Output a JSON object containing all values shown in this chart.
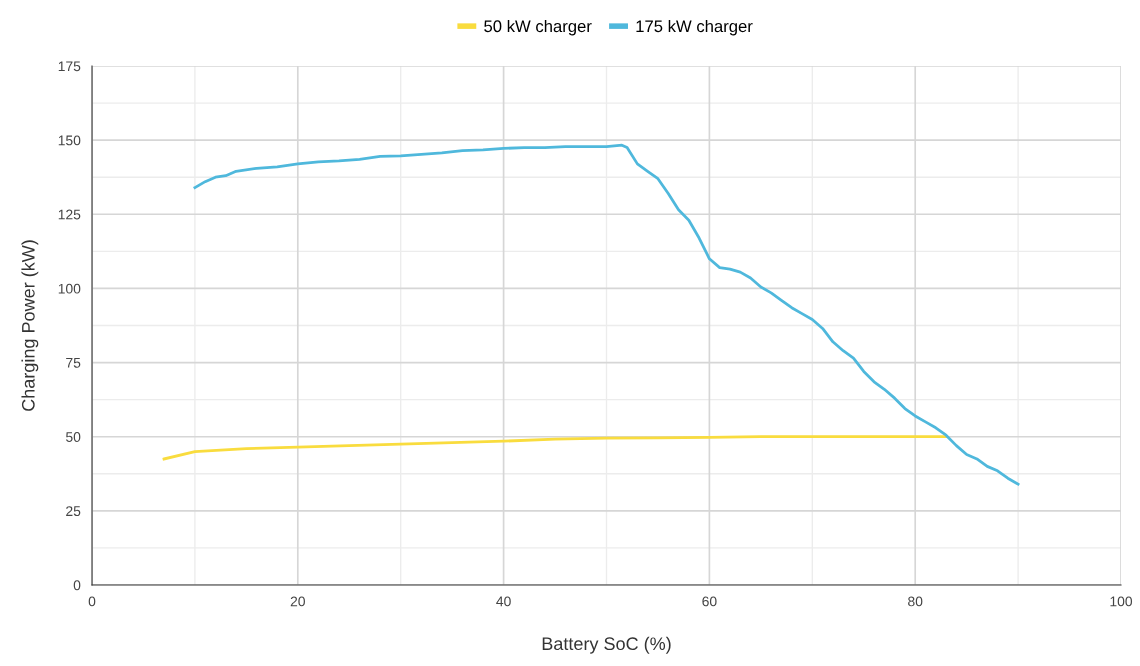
{
  "chart_data": {
    "type": "line",
    "xlabel": "Battery SoC (%)",
    "ylabel": "Charging Power (kW)",
    "xlim": [
      0,
      100
    ],
    "xticks": [
      0,
      20,
      40,
      60,
      80,
      100
    ],
    "ylim": [
      0,
      175
    ],
    "yticks": [
      0,
      25,
      50,
      75,
      100,
      125,
      150,
      175
    ],
    "grid": true,
    "legend": "top",
    "marker": "none",
    "line_style": "solid",
    "series": [
      {
        "name": "50 kW charger",
        "color": "#f9dc3e",
        "x": [
          7,
          10,
          15,
          20,
          25,
          30,
          35,
          40,
          45,
          50,
          55,
          60,
          65,
          70,
          75,
          80,
          83
        ],
        "values": [
          42.5,
          45,
          46,
          46.5,
          47,
          47.5,
          48,
          48.5,
          49.2,
          49.5,
          49.6,
          49.8,
          50,
          50,
          50,
          50,
          50
        ]
      },
      {
        "name": "175 kW charger",
        "color": "#4fb8dc",
        "x": [
          10,
          11,
          12,
          13,
          14,
          16,
          18,
          20,
          22,
          24,
          26,
          28,
          30,
          32,
          34,
          36,
          38,
          40,
          42,
          44,
          46,
          48,
          50,
          51.5,
          52,
          53,
          54,
          55,
          56,
          57,
          58,
          59,
          60,
          61,
          62,
          63,
          64,
          65,
          66,
          67,
          68,
          69,
          70,
          71,
          72,
          73,
          74,
          75,
          76,
          77,
          78,
          79,
          80,
          81,
          82,
          83,
          84,
          85,
          86,
          87,
          88,
          89,
          90
        ],
        "values": [
          134,
          136,
          137.5,
          138,
          139.5,
          140.5,
          141,
          142,
          142.7,
          143,
          143.5,
          144.5,
          144.7,
          145.2,
          145.7,
          146.5,
          146.7,
          147.2,
          147.5,
          147.5,
          147.8,
          147.8,
          147.8,
          148.3,
          147.5,
          142,
          139.5,
          137,
          132,
          126.5,
          123,
          117,
          110,
          107,
          106.5,
          105.5,
          103.5,
          100.5,
          98.5,
          96,
          93.5,
          91.5,
          89.5,
          86.5,
          82,
          79,
          76.5,
          72,
          68.5,
          66,
          63,
          59.5,
          57,
          55,
          53,
          50.5,
          47,
          44,
          42.5,
          40,
          38.5,
          36,
          34
        ]
      }
    ]
  }
}
